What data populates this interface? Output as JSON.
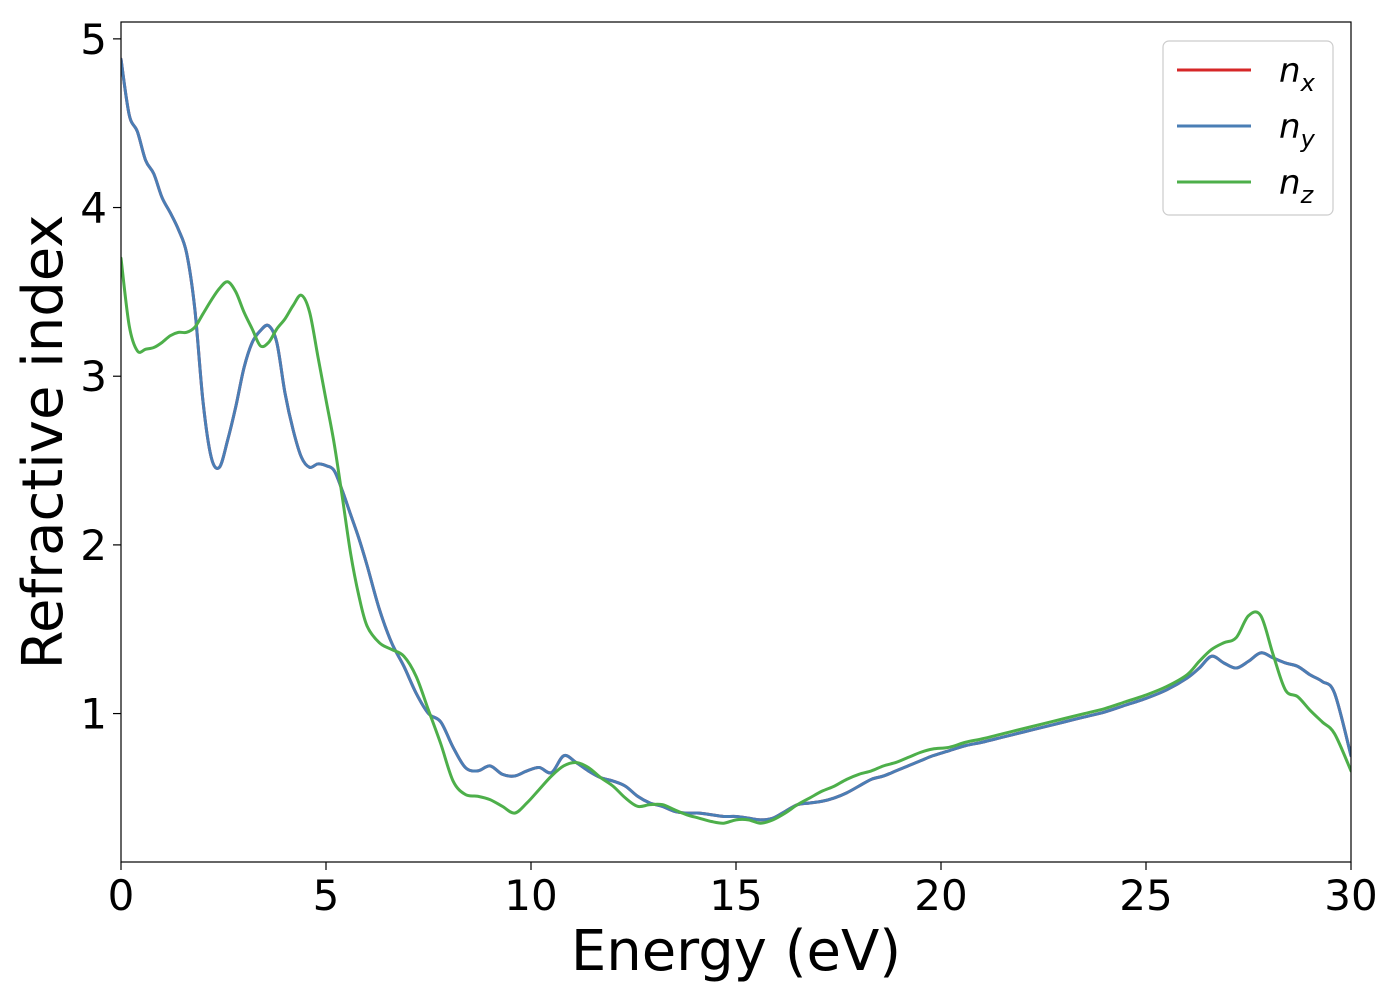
{
  "chart_data": {
    "type": "line",
    "title": "",
    "xlabel": "Energy (eV)",
    "ylabel": "Refractive index",
    "xlim": [
      0,
      30
    ],
    "ylim": [
      0.12,
      5.1
    ],
    "xticks": [
      "0",
      "5",
      "10",
      "15",
      "20",
      "25",
      "30"
    ],
    "yticks": [
      "1",
      "2",
      "3",
      "4",
      "5"
    ],
    "grid": false,
    "legend_position": "top-right",
    "series": [
      {
        "name": "n",
        "subscript": "x",
        "color": "#d62728",
        "x": [
          0,
          0.2,
          0.4,
          0.6,
          0.8,
          1.0,
          1.2,
          1.4,
          1.6,
          1.8,
          2.0,
          2.2,
          2.4,
          2.6,
          2.8,
          3.0,
          3.2,
          3.4,
          3.6,
          3.8,
          4.0,
          4.2,
          4.4,
          4.6,
          4.8,
          5.0,
          5.2,
          5.4,
          5.6,
          5.8,
          6.0,
          6.3,
          6.6,
          6.9,
          7.2,
          7.5,
          7.8,
          8.1,
          8.4,
          8.7,
          9.0,
          9.3,
          9.6,
          9.9,
          10.2,
          10.5,
          10.8,
          11.1,
          11.4,
          11.7,
          12.0,
          12.3,
          12.6,
          12.9,
          13.2,
          13.5,
          13.8,
          14.1,
          14.4,
          14.7,
          15.0,
          15.3,
          15.6,
          15.9,
          16.2,
          16.5,
          16.8,
          17.1,
          17.4,
          17.7,
          18.0,
          18.3,
          18.6,
          18.9,
          19.2,
          19.5,
          19.8,
          20.2,
          20.6,
          21.0,
          21.5,
          22.0,
          22.5,
          23.0,
          23.5,
          24.0,
          24.5,
          25.0,
          25.5,
          26.0,
          26.3,
          26.6,
          26.9,
          27.2,
          27.5,
          27.8,
          28.1,
          28.4,
          28.7,
          29.0,
          29.3,
          29.6,
          30.0
        ],
        "y": [
          4.88,
          4.55,
          4.45,
          4.28,
          4.2,
          4.06,
          3.97,
          3.87,
          3.73,
          3.4,
          2.85,
          2.52,
          2.46,
          2.62,
          2.82,
          3.05,
          3.2,
          3.27,
          3.3,
          3.2,
          2.9,
          2.68,
          2.52,
          2.46,
          2.48,
          2.47,
          2.44,
          2.32,
          2.18,
          2.04,
          1.88,
          1.62,
          1.42,
          1.28,
          1.12,
          1.0,
          0.95,
          0.8,
          0.68,
          0.66,
          0.69,
          0.64,
          0.63,
          0.66,
          0.68,
          0.65,
          0.75,
          0.71,
          0.66,
          0.62,
          0.6,
          0.57,
          0.51,
          0.47,
          0.45,
          0.42,
          0.41,
          0.41,
          0.4,
          0.39,
          0.39,
          0.38,
          0.37,
          0.38,
          0.42,
          0.46,
          0.47,
          0.48,
          0.5,
          0.53,
          0.57,
          0.61,
          0.63,
          0.66,
          0.69,
          0.72,
          0.75,
          0.78,
          0.81,
          0.83,
          0.86,
          0.89,
          0.92,
          0.95,
          0.98,
          1.01,
          1.05,
          1.09,
          1.14,
          1.21,
          1.27,
          1.34,
          1.3,
          1.27,
          1.31,
          1.36,
          1.33,
          1.3,
          1.28,
          1.23,
          1.19,
          1.12,
          0.75
        ]
      },
      {
        "name": "n",
        "subscript": "y",
        "color": "#4a7eb5",
        "x": [
          0,
          0.2,
          0.4,
          0.6,
          0.8,
          1.0,
          1.2,
          1.4,
          1.6,
          1.8,
          2.0,
          2.2,
          2.4,
          2.6,
          2.8,
          3.0,
          3.2,
          3.4,
          3.6,
          3.8,
          4.0,
          4.2,
          4.4,
          4.6,
          4.8,
          5.0,
          5.2,
          5.4,
          5.6,
          5.8,
          6.0,
          6.3,
          6.6,
          6.9,
          7.2,
          7.5,
          7.8,
          8.1,
          8.4,
          8.7,
          9.0,
          9.3,
          9.6,
          9.9,
          10.2,
          10.5,
          10.8,
          11.1,
          11.4,
          11.7,
          12.0,
          12.3,
          12.6,
          12.9,
          13.2,
          13.5,
          13.8,
          14.1,
          14.4,
          14.7,
          15.0,
          15.3,
          15.6,
          15.9,
          16.2,
          16.5,
          16.8,
          17.1,
          17.4,
          17.7,
          18.0,
          18.3,
          18.6,
          18.9,
          19.2,
          19.5,
          19.8,
          20.2,
          20.6,
          21.0,
          21.5,
          22.0,
          22.5,
          23.0,
          23.5,
          24.0,
          24.5,
          25.0,
          25.5,
          26.0,
          26.3,
          26.6,
          26.9,
          27.2,
          27.5,
          27.8,
          28.1,
          28.4,
          28.7,
          29.0,
          29.3,
          29.6,
          30.0
        ],
        "y": [
          4.88,
          4.55,
          4.45,
          4.28,
          4.2,
          4.06,
          3.97,
          3.87,
          3.73,
          3.4,
          2.85,
          2.52,
          2.46,
          2.62,
          2.82,
          3.05,
          3.2,
          3.27,
          3.3,
          3.2,
          2.9,
          2.68,
          2.52,
          2.46,
          2.48,
          2.47,
          2.44,
          2.32,
          2.18,
          2.04,
          1.88,
          1.62,
          1.42,
          1.28,
          1.12,
          1.0,
          0.95,
          0.8,
          0.68,
          0.66,
          0.69,
          0.64,
          0.63,
          0.66,
          0.68,
          0.65,
          0.75,
          0.71,
          0.66,
          0.62,
          0.6,
          0.57,
          0.51,
          0.47,
          0.45,
          0.42,
          0.41,
          0.41,
          0.4,
          0.39,
          0.39,
          0.38,
          0.37,
          0.38,
          0.42,
          0.46,
          0.47,
          0.48,
          0.5,
          0.53,
          0.57,
          0.61,
          0.63,
          0.66,
          0.69,
          0.72,
          0.75,
          0.78,
          0.81,
          0.83,
          0.86,
          0.89,
          0.92,
          0.95,
          0.98,
          1.01,
          1.05,
          1.09,
          1.14,
          1.21,
          1.27,
          1.34,
          1.3,
          1.27,
          1.31,
          1.36,
          1.33,
          1.3,
          1.28,
          1.23,
          1.19,
          1.12,
          0.75
        ]
      },
      {
        "name": "n",
        "subscript": "z",
        "color": "#4daf4a",
        "x": [
          0,
          0.2,
          0.4,
          0.6,
          0.8,
          1.0,
          1.2,
          1.4,
          1.6,
          1.8,
          2.0,
          2.2,
          2.4,
          2.6,
          2.8,
          3.0,
          3.2,
          3.4,
          3.6,
          3.8,
          4.0,
          4.2,
          4.4,
          4.6,
          4.8,
          5.0,
          5.2,
          5.4,
          5.6,
          5.8,
          6.0,
          6.3,
          6.6,
          6.9,
          7.2,
          7.5,
          7.8,
          8.1,
          8.4,
          8.7,
          9.0,
          9.3,
          9.6,
          9.9,
          10.2,
          10.5,
          10.8,
          11.1,
          11.4,
          11.7,
          12.0,
          12.3,
          12.6,
          12.9,
          13.2,
          13.5,
          13.8,
          14.1,
          14.4,
          14.7,
          15.0,
          15.3,
          15.6,
          15.9,
          16.2,
          16.5,
          16.8,
          17.1,
          17.4,
          17.7,
          18.0,
          18.3,
          18.6,
          18.9,
          19.2,
          19.5,
          19.8,
          20.2,
          20.6,
          21.0,
          21.5,
          22.0,
          22.5,
          23.0,
          23.5,
          24.0,
          24.5,
          25.0,
          25.5,
          26.0,
          26.3,
          26.6,
          26.9,
          27.2,
          27.5,
          27.8,
          28.1,
          28.4,
          28.7,
          29.0,
          29.3,
          29.6,
          30.0
        ],
        "y": [
          3.7,
          3.3,
          3.15,
          3.16,
          3.17,
          3.2,
          3.24,
          3.26,
          3.26,
          3.29,
          3.37,
          3.45,
          3.52,
          3.56,
          3.5,
          3.38,
          3.28,
          3.18,
          3.2,
          3.28,
          3.34,
          3.42,
          3.48,
          3.38,
          3.12,
          2.86,
          2.6,
          2.28,
          1.95,
          1.7,
          1.52,
          1.42,
          1.38,
          1.34,
          1.22,
          1.02,
          0.82,
          0.6,
          0.52,
          0.51,
          0.49,
          0.45,
          0.41,
          0.47,
          0.55,
          0.63,
          0.69,
          0.71,
          0.68,
          0.62,
          0.57,
          0.5,
          0.45,
          0.46,
          0.46,
          0.43,
          0.4,
          0.38,
          0.36,
          0.35,
          0.37,
          0.37,
          0.35,
          0.37,
          0.41,
          0.46,
          0.5,
          0.54,
          0.57,
          0.61,
          0.64,
          0.66,
          0.69,
          0.71,
          0.74,
          0.77,
          0.79,
          0.8,
          0.83,
          0.85,
          0.88,
          0.91,
          0.94,
          0.97,
          1.0,
          1.03,
          1.07,
          1.11,
          1.16,
          1.23,
          1.31,
          1.38,
          1.42,
          1.45,
          1.58,
          1.58,
          1.35,
          1.14,
          1.1,
          1.02,
          0.95,
          0.88,
          0.66
        ]
      }
    ]
  }
}
